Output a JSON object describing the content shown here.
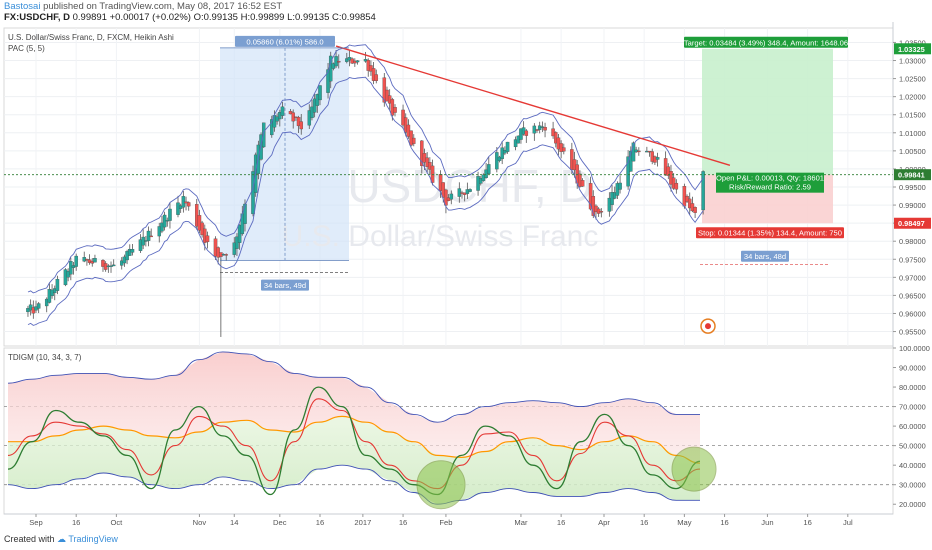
{
  "header": {
    "author": "Bastosai",
    "published_text": "published on TradingView.com, May 08, 2017 16:52 EST",
    "symbol": "FX:USDCHF, D",
    "last": "0.99891",
    "change": "+0.00017 (+0.02%)",
    "open": "O:0.99135",
    "high": "H:0.99899",
    "low": "L:0.99135",
    "close": "C:0.99854"
  },
  "overlay": {
    "series_title": "U.S. Dollar/Swiss Franc, D, FXCM, Heikin Ashi",
    "indicator": "PAC (5, 5)",
    "watermark_symbol": "USDCHF, D",
    "watermark_name": "U.S. Dollar/Swiss Franc"
  },
  "annotations": {
    "range_label": "0.05860 (6.01%) 586.0",
    "bars_left": "34 bars, 49d",
    "bars_right": "34 bars, 48d",
    "target_label": "Target: 0.03484 (3.49%) 348.4, Amount: 1648.06",
    "open_pl": "Open P&L: 0.00013, Qty: 18601",
    "risk_reward": "Risk/Reward Ratio: 2.59",
    "stop_label": "Stop: 0.01344 (1.35%) 134.4, Amount: 750",
    "price_target": "1.03325",
    "price_current": "0.99841",
    "price_stop": "0.98497"
  },
  "indicator_pane": {
    "title": "TDIGM (10, 34, 3, 7)",
    "yticks": [
      "100.0000",
      "90.0000",
      "80.0000",
      "70.0000",
      "60.0000",
      "50.0000",
      "40.0000",
      "30.0000",
      "20.0000"
    ]
  },
  "footer": {
    "created_with": "Created with",
    "brand": "TradingView"
  },
  "colors": {
    "bull": "#26a69a",
    "bear": "#ef5350",
    "trendline": "#e53935",
    "pac": "#5c6bc0",
    "range_fill": "#cfe2f8",
    "target_fill": "#c8efcd",
    "stop_fill": "#f9d0d0",
    "rsi_line": "#2e7d32",
    "signal_line": "#e53935",
    "mid_line": "#ff9800",
    "band_line": "#3f51b5",
    "circle": "#8bc34a"
  },
  "chart_data": [
    {
      "type": "candlestick",
      "title": "U.S. Dollar/Swiss Franc, D, FXCM, Heikin Ashi",
      "xlabel": "",
      "ylabel": "",
      "x_ticks": [
        "Sep",
        "16",
        "Oct",
        "Nov",
        "14",
        "Dec",
        "16",
        "2017",
        "16",
        "Feb",
        "Mar",
        "16",
        "Apr",
        "16",
        "May",
        "16",
        "Jun",
        "16",
        "Jul"
      ],
      "y_ticks": [
        "1.03500",
        "1.03000",
        "1.02500",
        "1.02000",
        "1.01500",
        "1.01000",
        "1.00500",
        "1.00000",
        "0.99500",
        "0.99000",
        "0.98500",
        "0.98000",
        "0.97500",
        "0.97000",
        "0.96500",
        "0.96000",
        "0.95500"
      ],
      "ylim": [
        0.951,
        1.039
      ],
      "grid": true,
      "approx_close_path": [
        {
          "x": "Sep 01",
          "y": 0.961
        },
        {
          "x": "Sep 16",
          "y": 0.975
        },
        {
          "x": "Oct 01",
          "y": 0.973
        },
        {
          "x": "Oct 16",
          "y": 0.984
        },
        {
          "x": "Oct 26",
          "y": 0.992
        },
        {
          "x": "Nov 07",
          "y": 0.975
        },
        {
          "x": "Nov 14",
          "y": 0.979
        },
        {
          "x": "Nov 25",
          "y": 1.012
        },
        {
          "x": "Dec 02",
          "y": 1.016
        },
        {
          "x": "Dec 10",
          "y": 1.011
        },
        {
          "x": "Dec 20",
          "y": 1.03
        },
        {
          "x": "Jan 02",
          "y": 1.03
        },
        {
          "x": "Jan 10",
          "y": 1.018
        },
        {
          "x": "Jan 20",
          "y": 1.006
        },
        {
          "x": "Feb 01",
          "y": 0.991
        },
        {
          "x": "Feb 10",
          "y": 0.995
        },
        {
          "x": "Feb 20",
          "y": 1.004
        },
        {
          "x": "Mar 01",
          "y": 1.01
        },
        {
          "x": "Mar 10",
          "y": 1.012
        },
        {
          "x": "Mar 20",
          "y": 1.0
        },
        {
          "x": "Mar 29",
          "y": 0.987
        },
        {
          "x": "Apr 05",
          "y": 0.994
        },
        {
          "x": "Apr 12",
          "y": 1.006
        },
        {
          "x": "Apr 20",
          "y": 1.003
        },
        {
          "x": "Apr 28",
          "y": 0.994
        },
        {
          "x": "May 05",
          "y": 0.987
        },
        {
          "x": "May 08",
          "y": 0.9985
        }
      ],
      "trendline": [
        {
          "x": "Dec 22",
          "y": 1.034
        },
        {
          "x": "May 18",
          "y": 1.001
        }
      ],
      "position": {
        "entry": 0.99841,
        "target": 1.03325,
        "stop": 0.98497
      }
    },
    {
      "type": "line",
      "title": "TDIGM (10, 34, 3, 7)",
      "ylim": [
        15,
        100
      ],
      "y_ticks": [
        100,
        90,
        80,
        70,
        60,
        50,
        40,
        30,
        20
      ],
      "series": [
        {
          "color": "green",
          "values": [
            38,
            52,
            68,
            62,
            55,
            45,
            28,
            58,
            70,
            55,
            45,
            25,
            58,
            80,
            70,
            45,
            38,
            30,
            25,
            45,
            60,
            55,
            40,
            28,
            52,
            66,
            50,
            35,
            28,
            42
          ]
        },
        {
          "color": "red",
          "values": [
            45,
            55,
            62,
            60,
            56,
            48,
            35,
            50,
            65,
            60,
            50,
            32,
            52,
            74,
            68,
            52,
            40,
            32,
            28,
            40,
            56,
            57,
            45,
            32,
            46,
            62,
            55,
            40,
            32,
            38
          ]
        },
        {
          "color": "orange",
          "values": [
            52,
            52,
            55,
            58,
            60,
            58,
            55,
            54,
            57,
            62,
            63,
            58,
            57,
            62,
            65,
            62,
            57,
            52,
            45,
            44,
            47,
            52,
            54,
            50,
            48,
            52,
            55,
            52,
            45,
            41
          ]
        },
        {
          "color": "blue",
          "values": [
            82,
            84,
            86,
            87,
            87,
            85,
            84,
            86,
            94,
            98,
            97,
            93,
            87,
            85,
            85,
            80,
            72,
            66,
            62,
            66,
            70,
            72,
            73,
            72,
            70,
            72,
            74,
            72,
            66,
            66
          ]
        },
        {
          "color": "blue",
          "values": [
            30,
            28,
            30,
            33,
            36,
            34,
            30,
            28,
            30,
            34,
            32,
            28,
            30,
            38,
            40,
            38,
            32,
            26,
            20,
            22,
            26,
            28,
            26,
            24,
            24,
            26,
            28,
            26,
            22,
            22
          ]
        }
      ]
    }
  ]
}
